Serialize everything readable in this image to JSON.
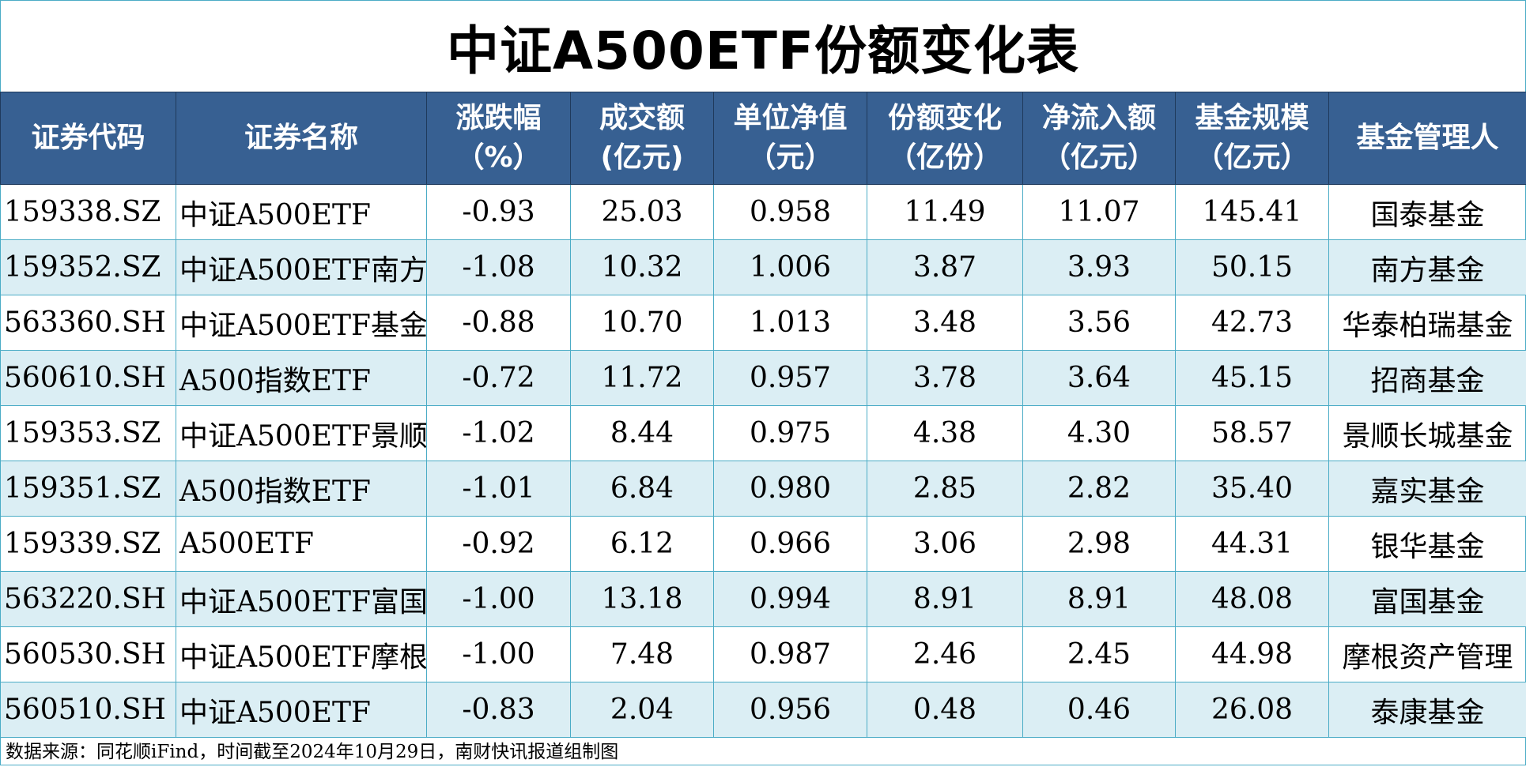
{
  "title": "中证A500ETF份额变化表",
  "headers": [
    [
      "证券代码",
      ""
    ],
    [
      "证券名称",
      ""
    ],
    [
      "涨跌幅",
      "（%）"
    ],
    [
      "成交额",
      "(亿元)"
    ],
    [
      "单位净值",
      "（元）"
    ],
    [
      "份额变化",
      "（亿份）"
    ],
    [
      "净流入额",
      "（亿元）"
    ],
    [
      "基金规模",
      "（亿元）"
    ],
    [
      "基金管理人",
      ""
    ]
  ],
  "rows": [
    [
      "159338.SZ",
      "中证A500ETF",
      "-0.93",
      "25.03",
      "0.958",
      "11.49",
      "11.07",
      "145.41",
      "国泰基金"
    ],
    [
      "159352.SZ",
      "中证A500ETF南方",
      "-1.08",
      "10.32",
      "1.006",
      "3.87",
      "3.93",
      "50.15",
      "南方基金"
    ],
    [
      "563360.SH",
      "中证A500ETF基金",
      "-0.88",
      "10.70",
      "1.013",
      "3.48",
      "3.56",
      "42.73",
      "华泰柏瑞基金"
    ],
    [
      "560610.SH",
      "A500指数ETF",
      "-0.72",
      "11.72",
      "0.957",
      "3.78",
      "3.64",
      "45.15",
      "招商基金"
    ],
    [
      "159353.SZ",
      "中证A500ETF景顺",
      "-1.02",
      "8.44",
      "0.975",
      "4.38",
      "4.30",
      "58.57",
      "景顺长城基金"
    ],
    [
      "159351.SZ",
      "A500指数ETF",
      "-1.01",
      "6.84",
      "0.980",
      "2.85",
      "2.82",
      "35.40",
      "嘉实基金"
    ],
    [
      "159339.SZ",
      "A500ETF",
      "-0.92",
      "6.12",
      "0.966",
      "3.06",
      "2.98",
      "44.31",
      "银华基金"
    ],
    [
      "563220.SH",
      "中证A500ETF富国",
      "-1.00",
      "13.18",
      "0.994",
      "8.91",
      "8.91",
      "48.08",
      "富国基金"
    ],
    [
      "560530.SH",
      "中证A500ETF摩根",
      "-1.00",
      "7.48",
      "0.987",
      "2.46",
      "2.45",
      "44.98",
      "摩根资产管理"
    ],
    [
      "560510.SH",
      "中证A500ETF",
      "-0.83",
      "2.04",
      "0.956",
      "0.48",
      "0.46",
      "26.08",
      "泰康基金"
    ]
  ],
  "footer": "数据来源：同花顺iFind，时间截至2024年10月29日，南财快讯报道组制图",
  "colors": {
    "header_bg": "#376092",
    "alt_row": "#dbeef4",
    "border": "#4bacc6"
  }
}
